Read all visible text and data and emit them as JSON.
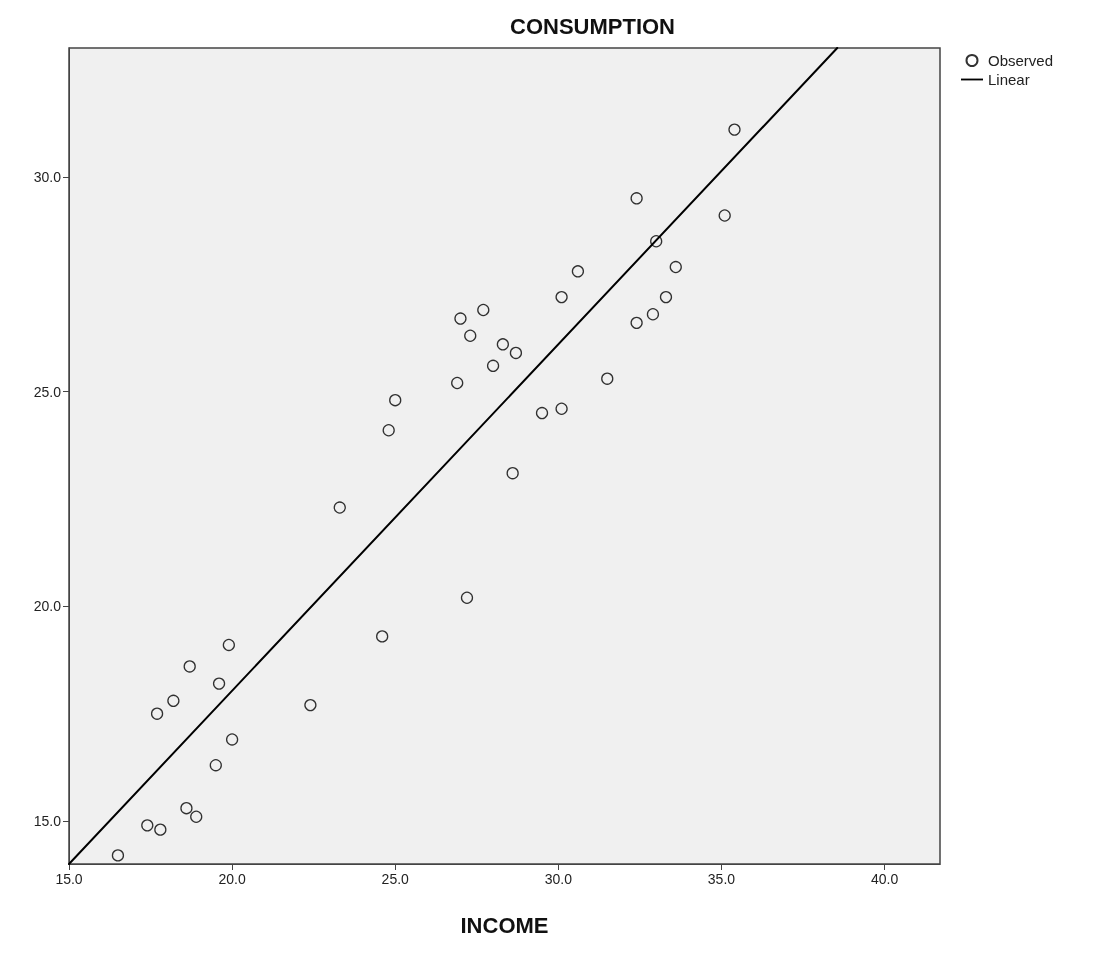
{
  "chart_data": {
    "type": "scatter",
    "title": "CONSUMPTION",
    "xlabel": "INCOME",
    "xlim": [
      15,
      41.7
    ],
    "ylim": [
      14.0,
      33.0
    ],
    "xticks": [
      {
        "value": 15,
        "label": "15.0"
      },
      {
        "value": 20,
        "label": "20.0"
      },
      {
        "value": 25,
        "label": "25.0"
      },
      {
        "value": 30,
        "label": "30.0"
      },
      {
        "value": 35,
        "label": "35.0"
      },
      {
        "value": 40,
        "label": "40.0"
      }
    ],
    "yticks": [
      {
        "value": 15,
        "label": "15.0"
      },
      {
        "value": 20,
        "label": "20.0"
      },
      {
        "value": 25,
        "label": "25.0"
      },
      {
        "value": 30,
        "label": "30.0"
      }
    ],
    "grid": false,
    "legend": "top right",
    "series": [
      {
        "name": "Observed",
        "marker": "circle",
        "color": "#000000",
        "x": [
          16.5,
          17.4,
          17.8,
          18.6,
          18.9,
          17.7,
          18.2,
          18.7,
          19.9,
          19.6,
          20.0,
          19.5,
          22.4,
          24.6,
          23.3,
          24.8,
          25.0,
          27.2,
          26.9,
          27.0,
          27.3,
          27.7,
          28.0,
          28.3,
          28.7,
          28.6,
          29.5,
          30.1,
          30.1,
          35.4,
          32.4,
          35.1,
          33.0,
          33.6,
          33.3,
          32.9,
          32.4,
          30.6,
          31.5
        ],
        "values": [
          14.2,
          14.9,
          14.8,
          15.3,
          15.1,
          17.5,
          17.8,
          18.6,
          19.1,
          18.2,
          16.9,
          16.3,
          17.7,
          19.3,
          22.3,
          24.1,
          24.8,
          20.2,
          25.2,
          26.7,
          26.3,
          26.9,
          25.6,
          26.1,
          25.9,
          23.1,
          24.5,
          24.6,
          27.2,
          31.1,
          29.5,
          29.1,
          28.5,
          27.9,
          27.2,
          26.8,
          26.6,
          27.8,
          25.3
        ]
      },
      {
        "name": "Linear",
        "type": "line",
        "marker": "none",
        "color": "#000000",
        "line_style": "solid",
        "x": [
          15,
          38.55
        ],
        "values": [
          14.0,
          33.0
        ]
      }
    ]
  }
}
